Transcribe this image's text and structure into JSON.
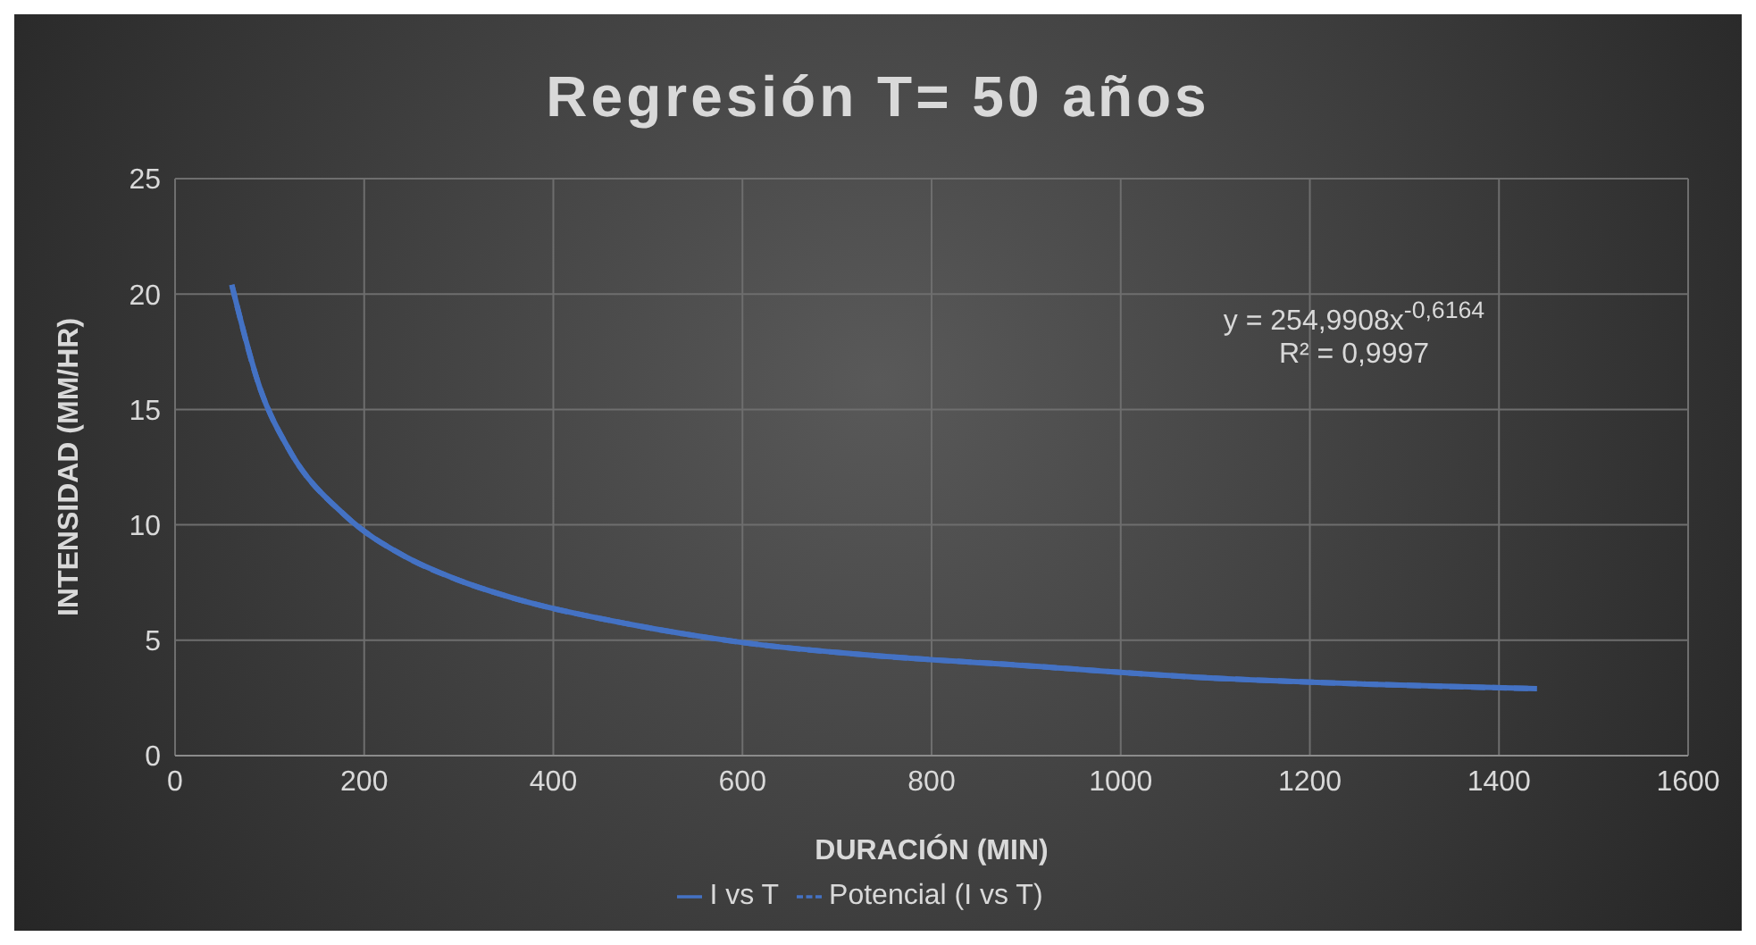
{
  "chart_data": {
    "type": "line",
    "title": "Regresión T= 50 años",
    "xlabel": "DURACIÓN (MIN)",
    "ylabel": "INTENSIDAD (MM/HR)",
    "x": [
      60,
      90,
      120,
      180,
      240,
      300,
      360,
      480,
      600,
      720,
      900,
      1080,
      1260,
      1440
    ],
    "series": [
      {
        "name": "I vs T",
        "color": "#4472c4",
        "line_style": "solid",
        "values": [
          20.4,
          15.9,
          13.3,
          10.4,
          8.7,
          7.6,
          6.8,
          5.7,
          4.9,
          4.4,
          3.9,
          3.4,
          3.1,
          2.9
        ]
      },
      {
        "name": "Potencial (I vs T)",
        "color": "#4472c4",
        "line_style": "dashed",
        "values": [
          20.4,
          15.9,
          13.3,
          10.4,
          8.7,
          7.6,
          6.8,
          5.7,
          4.9,
          4.4,
          3.9,
          3.4,
          3.1,
          2.9
        ]
      }
    ],
    "xlim": [
      0,
      1600
    ],
    "xticks": [
      0,
      200,
      400,
      600,
      800,
      1000,
      1200,
      1400,
      1600
    ],
    "ylim": [
      0,
      25
    ],
    "yticks": [
      0,
      5,
      10,
      15,
      20,
      25
    ],
    "grid": true,
    "legend": "bottom",
    "marker": "none",
    "annotations": [
      "y = 254,9908x$^{-0,6164}$",
      "R² = 0,9997"
    ]
  }
}
